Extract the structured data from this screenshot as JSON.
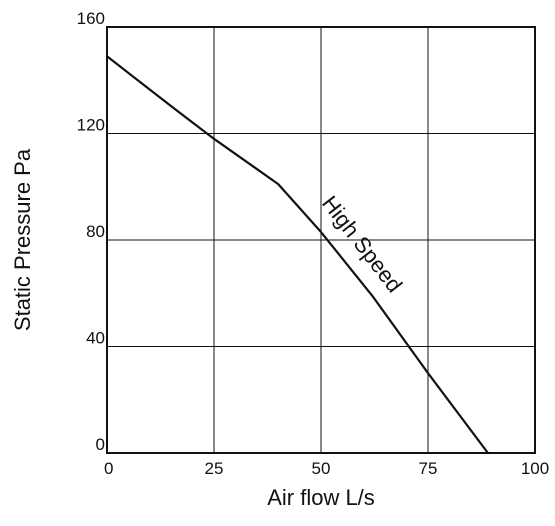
{
  "chart_data": {
    "type": "line",
    "title": "",
    "xlabel": "Air flow L/s",
    "ylabel": "Static Pressure Pa",
    "xlim": [
      0,
      100
    ],
    "ylim": [
      0,
      160
    ],
    "xticks": [
      0,
      25,
      50,
      75,
      100
    ],
    "yticks": [
      0,
      40,
      80,
      120,
      160
    ],
    "grid": true,
    "series": [
      {
        "name": "High Speed",
        "x": [
          0,
          16,
          25,
          40,
          50,
          62,
          75,
          89
        ],
        "y": [
          149,
          129,
          118,
          101,
          83,
          59,
          30,
          0
        ]
      }
    ]
  }
}
